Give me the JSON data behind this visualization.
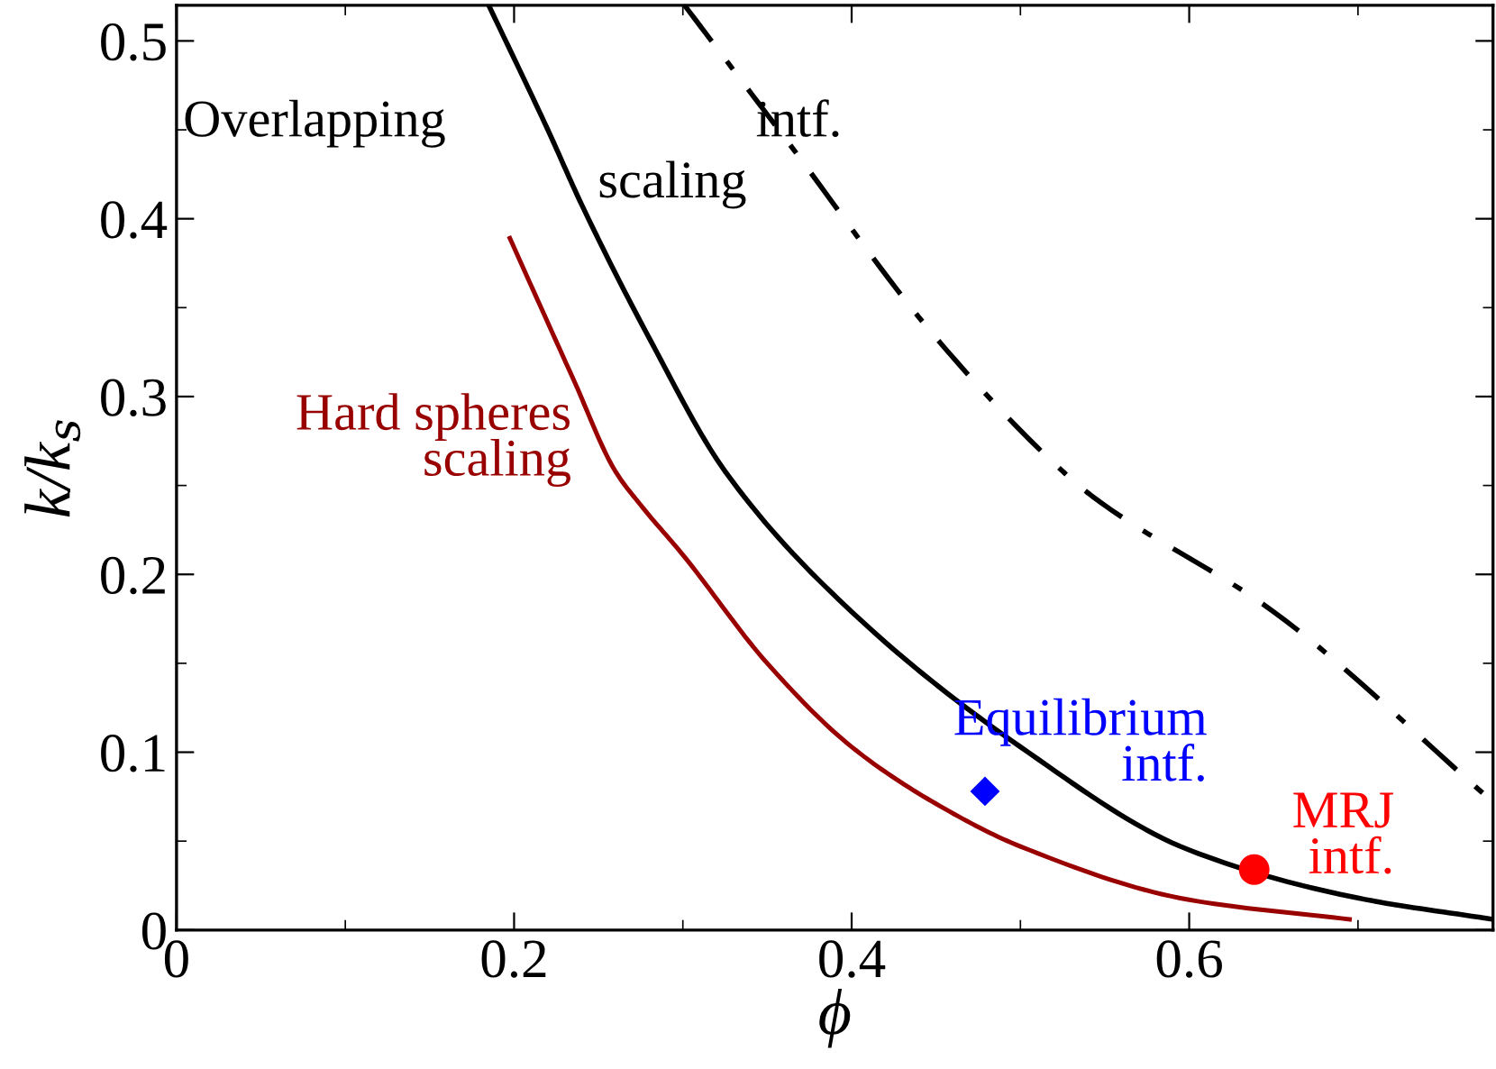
{
  "chart_data": {
    "type": "line",
    "xlabel": "ϕ",
    "ylabel": "k/k$_{s}$",
    "xlim": [
      0,
      0.78
    ],
    "ylim": [
      0,
      0.52
    ],
    "xticks": [
      0,
      0.2,
      0.4,
      0.6,
      {
        "value": 0.1,
        "label": null
      },
      {
        "value": 0.3,
        "label": null
      },
      {
        "value": 0.5,
        "label": null
      },
      {
        "value": 0.7,
        "label": null
      }
    ],
    "yticks": [
      0,
      0.1,
      0.2,
      0.3,
      0.4,
      0.5,
      {
        "value": 0.05,
        "label": null
      },
      {
        "value": 0.15,
        "label": null
      },
      {
        "value": 0.25,
        "label": null
      },
      {
        "value": 0.35,
        "label": null
      },
      {
        "value": 0.45,
        "label": null
      }
    ],
    "grid": false,
    "legend": false,
    "series": [
      {
        "color": "#000000",
        "line_style": "solid",
        "x": [
          0.185,
          0.22,
          0.24,
          0.28,
          0.325,
          0.4,
          0.5,
          0.6,
          0.7,
          0.78
        ],
        "values": [
          0.52,
          0.45,
          0.408,
          0.333,
          0.258,
          0.179,
          0.103,
          0.045,
          0.018,
          0.006
        ]
      },
      {
        "color": "#000000",
        "line_style": "dashdot",
        "x": [
          0.301,
          0.36,
          0.45,
          0.525,
          0.5425,
          0.65,
          0.78
        ],
        "values": [
          0.52,
          0.446,
          0.333,
          0.258,
          0.244,
          0.179,
          0.072
        ]
      },
      {
        "color": "#990000",
        "line_style": "solid",
        "x": [
          0.1975,
          0.235,
          0.26,
          0.275,
          0.3,
          0.35,
          0.4,
          0.45,
          0.5,
          0.6,
          0.695
        ],
        "values": [
          0.389,
          0.31,
          0.258,
          0.239,
          0.211,
          0.15,
          0.103,
          0.071,
          0.047,
          0.017,
          0.006
        ]
      },
      {
        "type": "scatter",
        "color": "#0000ff",
        "marker": "diamond",
        "x": [
          0.479
        ],
        "values": [
          0.078
        ]
      },
      {
        "type": "scatter",
        "color": "#ff0000",
        "marker": "circle",
        "x": [
          0.6385
        ],
        "values": [
          0.034
        ]
      }
    ],
    "annotations": [
      "Overlapping",
      "scaling",
      "intf.",
      "Hard spheres\nscaling",
      "Equilibrium\nintf.",
      "MRJ\nintf."
    ]
  }
}
